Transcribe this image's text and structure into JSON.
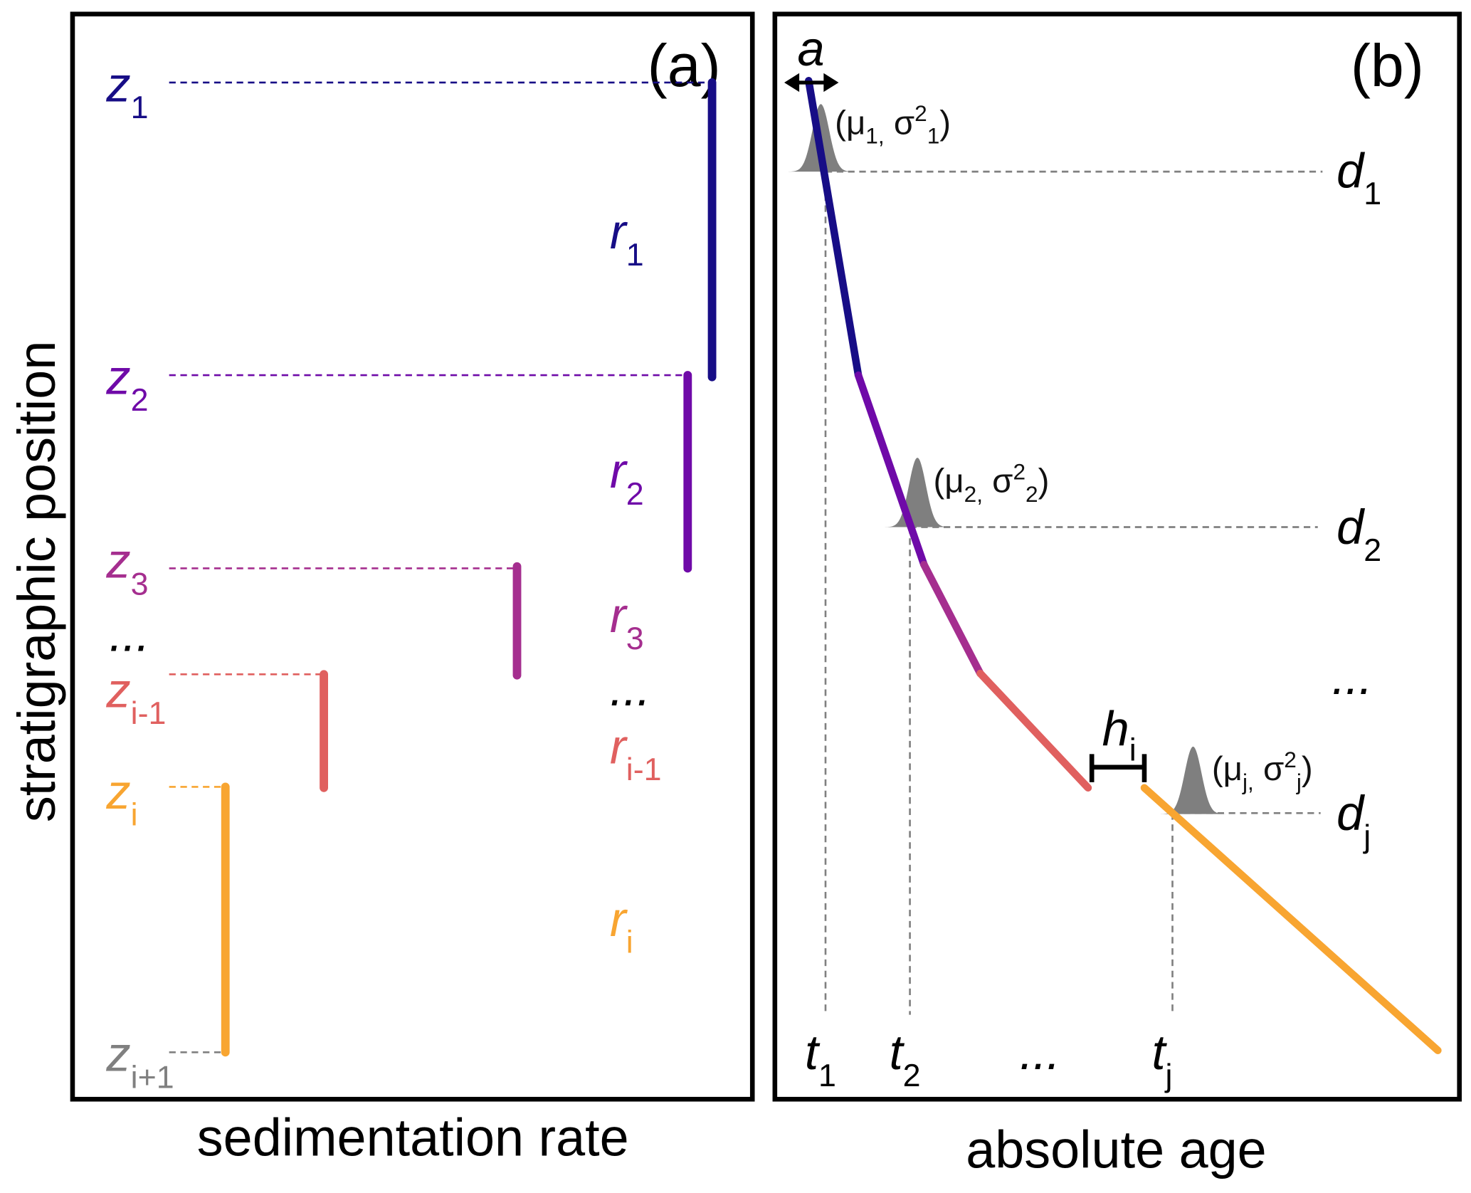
{
  "panel_a": {
    "tag": "(a)",
    "xlabel": "sedimentation rate",
    "ylabel": "stratigraphic position",
    "z_labels": [
      {
        "main": "z",
        "sub": "1"
      },
      {
        "main": "z",
        "sub": "2"
      },
      {
        "main": "z",
        "sub": "3"
      },
      {
        "main": "z",
        "sub": "i-1"
      },
      {
        "main": "z",
        "sub": "i"
      },
      {
        "main": "z",
        "sub": "i+1"
      }
    ],
    "z_ellipsis": "...",
    "r_labels": [
      {
        "main": "r",
        "sub": "1"
      },
      {
        "main": "r",
        "sub": "2"
      },
      {
        "main": "r",
        "sub": "3"
      },
      {
        "main": "r",
        "sub": "i-1"
      },
      {
        "main": "r",
        "sub": "i"
      }
    ],
    "r_ellipsis": "..."
  },
  "panel_b": {
    "tag": "(b)",
    "xlabel": "absolute age",
    "a_label": "a",
    "h_label": {
      "main": "h",
      "sub": "i"
    },
    "d_labels": [
      {
        "main": "d",
        "sub": "1"
      },
      {
        "main": "d",
        "sub": "2"
      },
      {
        "main": "d",
        "sub": "j"
      }
    ],
    "d_ellipsis": "...",
    "t_labels": [
      {
        "main": "t",
        "sub": "1"
      },
      {
        "main": "t",
        "sub": "2"
      },
      {
        "main": "t",
        "sub": "j"
      }
    ],
    "t_ellipsis": "...",
    "params": [
      {
        "open": "(μ",
        "s1": "1,",
        "mid": " σ",
        "sup": "2",
        "s2": "1",
        "close": ")"
      },
      {
        "open": "(μ",
        "s1": "2,",
        "mid": " σ",
        "sup": "2",
        "s2": "2",
        "close": ")"
      },
      {
        "open": "(μ",
        "s1": "j,",
        "mid": " σ",
        "sup": "2",
        "s2": "j",
        "close": ")"
      }
    ]
  },
  "colors": {
    "seg1": "#170d86",
    "seg2": "#6f0aa8",
    "seg3": "#a52e8f",
    "seg4": "#e0605f",
    "seg5": "#f8a531",
    "gray": "#808080"
  }
}
